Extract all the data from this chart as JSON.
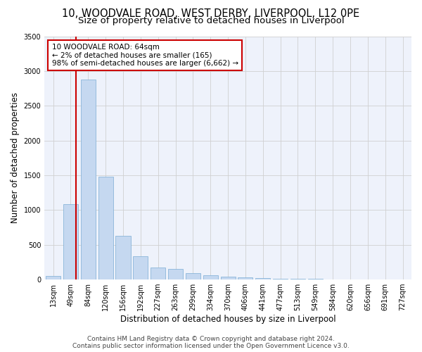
{
  "title_line1": "10, WOODVALE ROAD, WEST DERBY, LIVERPOOL, L12 0PE",
  "title_line2": "Size of property relative to detached houses in Liverpool",
  "xlabel": "Distribution of detached houses by size in Liverpool",
  "ylabel": "Number of detached properties",
  "categories": [
    "13sqm",
    "49sqm",
    "84sqm",
    "120sqm",
    "156sqm",
    "192sqm",
    "227sqm",
    "263sqm",
    "299sqm",
    "334sqm",
    "370sqm",
    "406sqm",
    "441sqm",
    "477sqm",
    "513sqm",
    "549sqm",
    "584sqm",
    "620sqm",
    "656sqm",
    "691sqm",
    "727sqm"
  ],
  "values": [
    50,
    1080,
    2880,
    1480,
    630,
    340,
    175,
    155,
    90,
    65,
    45,
    35,
    20,
    15,
    10,
    8,
    5,
    5,
    3,
    2,
    2
  ],
  "bar_color": "#c5d8f0",
  "bar_edge_color": "#7badd4",
  "vline_x": 1.3,
  "annotation_line1": "10 WOODVALE ROAD: 64sqm",
  "annotation_line2": "← 2% of detached houses are smaller (165)",
  "annotation_line3": "98% of semi-detached houses are larger (6,662) →",
  "vline_color": "#cc0000",
  "annotation_box_edge_color": "#cc0000",
  "annotation_box_face_color": "#ffffff",
  "ylim": [
    0,
    3500
  ],
  "yticks": [
    0,
    500,
    1000,
    1500,
    2000,
    2500,
    3000,
    3500
  ],
  "footer_line1": "Contains HM Land Registry data © Crown copyright and database right 2024.",
  "footer_line2": "Contains public sector information licensed under the Open Government Licence v3.0.",
  "bg_color": "#eef2fb",
  "grid_color": "#d0d0d0",
  "title1_fontsize": 10.5,
  "title2_fontsize": 9.5,
  "axis_label_fontsize": 8.5,
  "tick_fontsize": 7,
  "footer_fontsize": 6.5,
  "annot_fontsize": 7.5
}
